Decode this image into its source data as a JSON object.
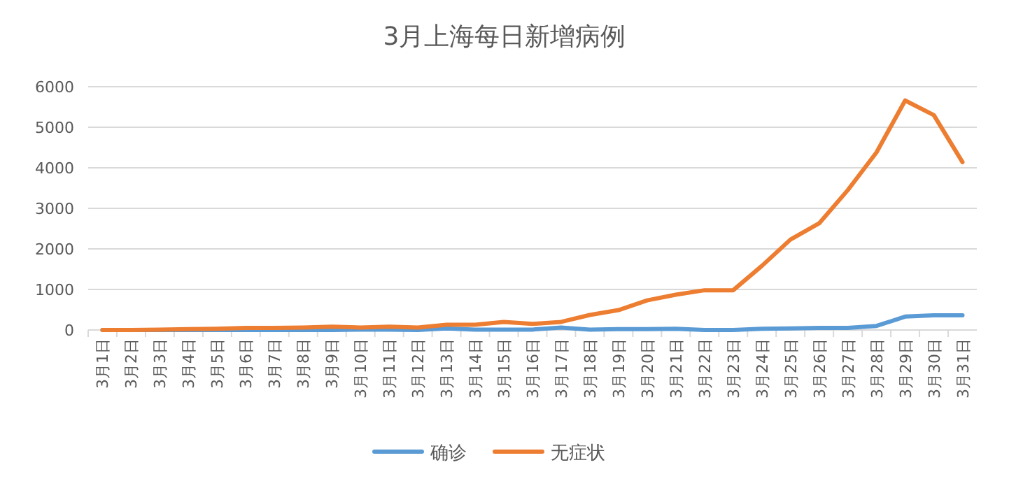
{
  "chart_data": {
    "type": "line",
    "title": "3月上海每日新增病例",
    "categories": [
      "3月1日",
      "3月2日",
      "3月3日",
      "3月4日",
      "3月5日",
      "3月6日",
      "3月7日",
      "3月8日",
      "3月9日",
      "3月10日",
      "3月11日",
      "3月12日",
      "3月13日",
      "3月14日",
      "3月15日",
      "3月16日",
      "3月17日",
      "3月18日",
      "3月19日",
      "3月20日",
      "3月21日",
      "3月22日",
      "3月23日",
      "3月24日",
      "3月25日",
      "3月26日",
      "3月27日",
      "3月28日",
      "3月29日",
      "3月30日",
      "3月31日"
    ],
    "series": [
      {
        "name": "确诊",
        "color": "#5b9bd5",
        "values": [
          0,
          0,
          0,
          0,
          0,
          0,
          0,
          0,
          0,
          10,
          10,
          0,
          40,
          10,
          10,
          10,
          60,
          10,
          20,
          20,
          30,
          0,
          0,
          30,
          40,
          50,
          50,
          100,
          330,
          360,
          360
        ]
      },
      {
        "name": "无症状",
        "color": "#ed7d31",
        "values": [
          0,
          0,
          10,
          20,
          30,
          50,
          50,
          60,
          80,
          60,
          80,
          60,
          130,
          130,
          200,
          150,
          200,
          370,
          490,
          730,
          870,
          980,
          980,
          1580,
          2230,
          2630,
          3450,
          4380,
          5660,
          5300,
          4140
        ]
      }
    ],
    "ylim": [
      0,
      6000
    ],
    "yticks": [
      0,
      1000,
      2000,
      3000,
      4000,
      5000,
      6000
    ],
    "grid": "y",
    "legend": "bottom",
    "marker": "none",
    "line_style": "solid"
  }
}
